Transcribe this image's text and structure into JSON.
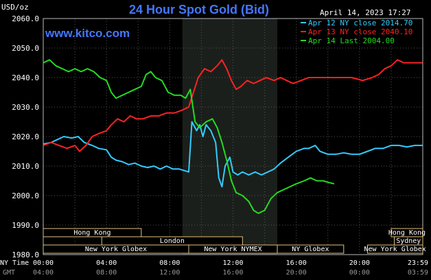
{
  "chart_data": {
    "type": "line",
    "title": "24 Hour Spot Gold (Bid)",
    "ylabel": "USD/oz",
    "site": "www.kitco.com",
    "timestamp": "April 14, 2023 17:27",
    "ylim": [
      1980,
      2060
    ],
    "xlim": [
      0,
      24
    ],
    "y_ticks": [
      "1980.0",
      "1990.0",
      "2000.0",
      "2010.0",
      "2020.0",
      "2030.0",
      "2040.0",
      "2050.0",
      "2060.0"
    ],
    "x_axis_ny_label": "NY Time",
    "x_axis_gmt_label": "GMT",
    "x_ticks_ny": [
      "00:00",
      "04:00",
      "08:00",
      "12:00",
      "16:00",
      "20:00",
      "23:59"
    ],
    "x_ticks_gmt": [
      "04:00",
      "08:00",
      "12:00",
      "16:00",
      "20:00",
      "00:00",
      "03:59"
    ],
    "highlight_window": [
      8.8,
      14.8
    ],
    "series": [
      {
        "name": "Apr 12 NY close 2014.70",
        "color": "#33ccff",
        "points": [
          [
            0,
            2017.5
          ],
          [
            0.5,
            2018
          ],
          [
            0.9,
            2019
          ],
          [
            1.3,
            2020
          ],
          [
            1.8,
            2019.5
          ],
          [
            2.2,
            2020
          ],
          [
            2.6,
            2018
          ],
          [
            3.1,
            2017
          ],
          [
            3.5,
            2016
          ],
          [
            4.0,
            2015.5
          ],
          [
            4.3,
            2013
          ],
          [
            4.6,
            2012
          ],
          [
            5.0,
            2011.5
          ],
          [
            5.4,
            2010.5
          ],
          [
            5.8,
            2011
          ],
          [
            6.2,
            2010
          ],
          [
            6.6,
            2009.5
          ],
          [
            7.0,
            2010
          ],
          [
            7.4,
            2009
          ],
          [
            7.8,
            2010
          ],
          [
            8.2,
            2009
          ],
          [
            8.6,
            2009
          ],
          [
            8.9,
            2008.5
          ],
          [
            9.2,
            2008
          ],
          [
            9.4,
            2025
          ],
          [
            9.7,
            2022
          ],
          [
            9.9,
            2024
          ],
          [
            10.1,
            2020
          ],
          [
            10.3,
            2024
          ],
          [
            10.6,
            2022
          ],
          [
            10.9,
            2018
          ],
          [
            11.1,
            2006
          ],
          [
            11.3,
            2003
          ],
          [
            11.5,
            2010
          ],
          [
            11.8,
            2013
          ],
          [
            12.0,
            2008
          ],
          [
            12.3,
            2007
          ],
          [
            12.6,
            2008
          ],
          [
            13.0,
            2007
          ],
          [
            13.4,
            2008
          ],
          [
            13.8,
            2007
          ],
          [
            14.2,
            2008
          ],
          [
            14.6,
            2009
          ],
          [
            15.0,
            2011
          ],
          [
            15.5,
            2013
          ],
          [
            16.0,
            2015
          ],
          [
            16.5,
            2016
          ],
          [
            16.8,
            2016
          ],
          [
            17.2,
            2017
          ],
          [
            17.5,
            2015
          ],
          [
            18.0,
            2014
          ],
          [
            18.5,
            2014
          ],
          [
            19.0,
            2014.5
          ],
          [
            19.5,
            2014
          ],
          [
            20.0,
            2014
          ],
          [
            20.5,
            2015
          ],
          [
            21.0,
            2016
          ],
          [
            21.5,
            2016
          ],
          [
            22.0,
            2017
          ],
          [
            22.5,
            2017
          ],
          [
            23.0,
            2016.5
          ],
          [
            23.5,
            2017
          ],
          [
            23.99,
            2017
          ]
        ]
      },
      {
        "name": "Apr 13 NY close 2040.10",
        "color": "#ff2222",
        "points": [
          [
            0,
            2017
          ],
          [
            0.5,
            2018
          ],
          [
            1.0,
            2017
          ],
          [
            1.5,
            2016
          ],
          [
            2.0,
            2017
          ],
          [
            2.3,
            2015
          ],
          [
            2.7,
            2017
          ],
          [
            3.1,
            2020
          ],
          [
            3.5,
            2021
          ],
          [
            4.0,
            2022
          ],
          [
            4.3,
            2024
          ],
          [
            4.7,
            2026
          ],
          [
            5.1,
            2025
          ],
          [
            5.5,
            2027
          ],
          [
            5.9,
            2026
          ],
          [
            6.3,
            2026
          ],
          [
            6.8,
            2027
          ],
          [
            7.3,
            2027
          ],
          [
            7.8,
            2028
          ],
          [
            8.3,
            2028
          ],
          [
            8.8,
            2029
          ],
          [
            9.2,
            2030
          ],
          [
            9.5,
            2035
          ],
          [
            9.8,
            2040
          ],
          [
            10.2,
            2043
          ],
          [
            10.6,
            2042
          ],
          [
            11.0,
            2044
          ],
          [
            11.3,
            2046
          ],
          [
            11.6,
            2043
          ],
          [
            11.9,
            2039
          ],
          [
            12.2,
            2036
          ],
          [
            12.5,
            2037
          ],
          [
            12.9,
            2039
          ],
          [
            13.3,
            2038
          ],
          [
            13.7,
            2039
          ],
          [
            14.1,
            2040
          ],
          [
            14.6,
            2039
          ],
          [
            15.0,
            2040
          ],
          [
            15.4,
            2039
          ],
          [
            15.8,
            2038
          ],
          [
            16.3,
            2039
          ],
          [
            16.8,
            2040
          ],
          [
            17.3,
            2040
          ],
          [
            18.0,
            2040
          ],
          [
            18.8,
            2040
          ],
          [
            19.5,
            2040
          ],
          [
            20.2,
            2039
          ],
          [
            20.8,
            2040
          ],
          [
            21.2,
            2041
          ],
          [
            21.6,
            2043
          ],
          [
            22.0,
            2044
          ],
          [
            22.4,
            2046
          ],
          [
            22.8,
            2045
          ],
          [
            23.2,
            2045
          ],
          [
            23.6,
            2045
          ],
          [
            23.99,
            2045
          ]
        ]
      },
      {
        "name": "Apr 14 Last 2004.00",
        "color": "#22dd22",
        "points": [
          [
            0,
            2045
          ],
          [
            0.4,
            2046
          ],
          [
            0.8,
            2044
          ],
          [
            1.2,
            2043
          ],
          [
            1.6,
            2042
          ],
          [
            2.0,
            2043
          ],
          [
            2.4,
            2042
          ],
          [
            2.8,
            2043
          ],
          [
            3.2,
            2042
          ],
          [
            3.6,
            2040
          ],
          [
            4.0,
            2039
          ],
          [
            4.3,
            2035
          ],
          [
            4.6,
            2033
          ],
          [
            5.0,
            2034
          ],
          [
            5.4,
            2035
          ],
          [
            5.8,
            2036
          ],
          [
            6.2,
            2037
          ],
          [
            6.5,
            2041
          ],
          [
            6.8,
            2042
          ],
          [
            7.1,
            2040
          ],
          [
            7.5,
            2039
          ],
          [
            7.9,
            2035
          ],
          [
            8.3,
            2034
          ],
          [
            8.7,
            2034
          ],
          [
            9.0,
            2033
          ],
          [
            9.3,
            2036
          ],
          [
            9.6,
            2025
          ],
          [
            9.9,
            2023
          ],
          [
            10.3,
            2025
          ],
          [
            10.7,
            2026
          ],
          [
            11.0,
            2023
          ],
          [
            11.3,
            2018
          ],
          [
            11.6,
            2012
          ],
          [
            11.9,
            2005
          ],
          [
            12.2,
            2001
          ],
          [
            12.6,
            2000
          ],
          [
            13.0,
            1998
          ],
          [
            13.3,
            1995
          ],
          [
            13.6,
            1994
          ],
          [
            14.0,
            1995
          ],
          [
            14.4,
            1999
          ],
          [
            14.8,
            2001
          ],
          [
            15.2,
            2002
          ],
          [
            15.6,
            2003
          ],
          [
            16.0,
            2004
          ],
          [
            16.5,
            2005
          ],
          [
            16.9,
            2006
          ],
          [
            17.3,
            2005
          ],
          [
            17.7,
            2005
          ],
          [
            18.0,
            2004.5
          ],
          [
            18.4,
            2004
          ]
        ]
      }
    ],
    "session_bars_top": [
      {
        "label": "Hong Kong",
        "start": 0,
        "end": 6.2
      },
      {
        "label": "Hong Kong",
        "start": 22.0,
        "end": 24.0
      }
    ],
    "session_bars_mid": [
      {
        "label": "London",
        "start": 3.7,
        "end": 12.6
      },
      {
        "label": "Sydney",
        "start": 22.2,
        "end": 24.0
      }
    ],
    "session_bars_bottom": [
      {
        "label": "New York Globex",
        "start": 0,
        "end": 9.2
      },
      {
        "label": "New York NYMEX",
        "start": 9.2,
        "end": 14.8
      },
      {
        "label": "NY Globex",
        "start": 14.8,
        "end": 19.0
      },
      {
        "label": "New York Globex",
        "start": 20.5,
        "end": 24.0
      }
    ]
  }
}
